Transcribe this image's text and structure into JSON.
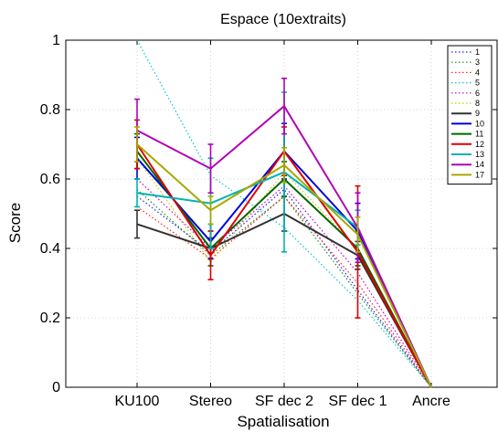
{
  "chart_data": {
    "type": "line",
    "title": "Espace (10extraits)",
    "xlabel": "Spatialisation",
    "ylabel": "Score",
    "categories": [
      "KU100",
      "Stereo",
      "SF dec 2",
      "SF dec 1",
      "Ancre"
    ],
    "ylim": [
      0,
      1
    ],
    "yticks": [
      0,
      0.2,
      0.4,
      0.6,
      0.8,
      1
    ],
    "ytick_labels": [
      "0",
      "0.2",
      "0.4",
      "0.6",
      "0.8",
      "1"
    ],
    "grid": true,
    "error_bars": true,
    "legend_position": "top-right",
    "series": [
      {
        "name": "1",
        "color": "#1f1fff",
        "dash": "dotted",
        "values": [
          0.55,
          0.39,
          0.57,
          0.28,
          0.0
        ],
        "err": [
          0,
          0,
          0,
          0,
          0
        ]
      },
      {
        "name": "3",
        "color": "#1a8a1a",
        "dash": "dotted",
        "values": [
          0.57,
          0.38,
          0.55,
          0.27,
          0.0
        ],
        "err": [
          0,
          0,
          0,
          0,
          0
        ]
      },
      {
        "name": "4",
        "color": "#ff2020",
        "dash": "dotted",
        "values": [
          0.52,
          0.37,
          0.55,
          0.3,
          0.0
        ],
        "err": [
          0,
          0,
          0,
          0,
          0
        ]
      },
      {
        "name": "5",
        "color": "#00c8c8",
        "dash": "dotted",
        "values": [
          1.0,
          0.61,
          0.46,
          0.25,
          0.0
        ],
        "err": [
          0,
          0,
          0,
          0,
          0
        ]
      },
      {
        "name": "6",
        "color": "#c800c8",
        "dash": "dotted",
        "values": [
          0.6,
          0.4,
          0.58,
          0.33,
          0.0
        ],
        "err": [
          0,
          0,
          0,
          0,
          0
        ]
      },
      {
        "name": "8",
        "color": "#c8c800",
        "dash": "dotted",
        "values": [
          0.66,
          0.36,
          0.62,
          0.4,
          0.0
        ],
        "err": [
          0,
          0,
          0,
          0,
          0
        ]
      },
      {
        "name": "9",
        "color": "#333333",
        "dash": "solid",
        "values": [
          0.47,
          0.4,
          0.5,
          0.38,
          0.0
        ],
        "err": [
          0.04,
          0.03,
          0.05,
          0.04,
          0
        ]
      },
      {
        "name": "10",
        "color": "#0000dd",
        "dash": "solid",
        "values": [
          0.66,
          0.42,
          0.68,
          0.45,
          0.0
        ],
        "err": [
          0.06,
          0.05,
          0.08,
          0.08,
          0
        ]
      },
      {
        "name": "11",
        "color": "#006600",
        "dash": "solid",
        "values": [
          0.68,
          0.4,
          0.6,
          0.4,
          0.0
        ],
        "err": [
          0.05,
          0.05,
          0.05,
          0.05,
          0
        ]
      },
      {
        "name": "12",
        "color": "#dd0000",
        "dash": "solid",
        "values": [
          0.7,
          0.38,
          0.68,
          0.39,
          0.0
        ],
        "err": [
          0.07,
          0.07,
          0.07,
          0.19,
          0
        ]
      },
      {
        "name": "13",
        "color": "#00b3b3",
        "dash": "solid",
        "values": [
          0.56,
          0.53,
          0.62,
          0.46,
          0.0
        ],
        "err": [
          0.04,
          0.13,
          0.23,
          0.05,
          0
        ]
      },
      {
        "name": "14",
        "color": "#b300b3",
        "dash": "solid",
        "values": [
          0.74,
          0.63,
          0.81,
          0.46,
          0.0
        ],
        "err": [
          0.09,
          0.07,
          0.08,
          0.1,
          0
        ]
      },
      {
        "name": "17",
        "color": "#a8a800",
        "dash": "solid",
        "values": [
          0.7,
          0.51,
          0.64,
          0.44,
          0.0
        ],
        "err": [
          0.05,
          0.04,
          0.05,
          0.05,
          0
        ]
      }
    ]
  }
}
